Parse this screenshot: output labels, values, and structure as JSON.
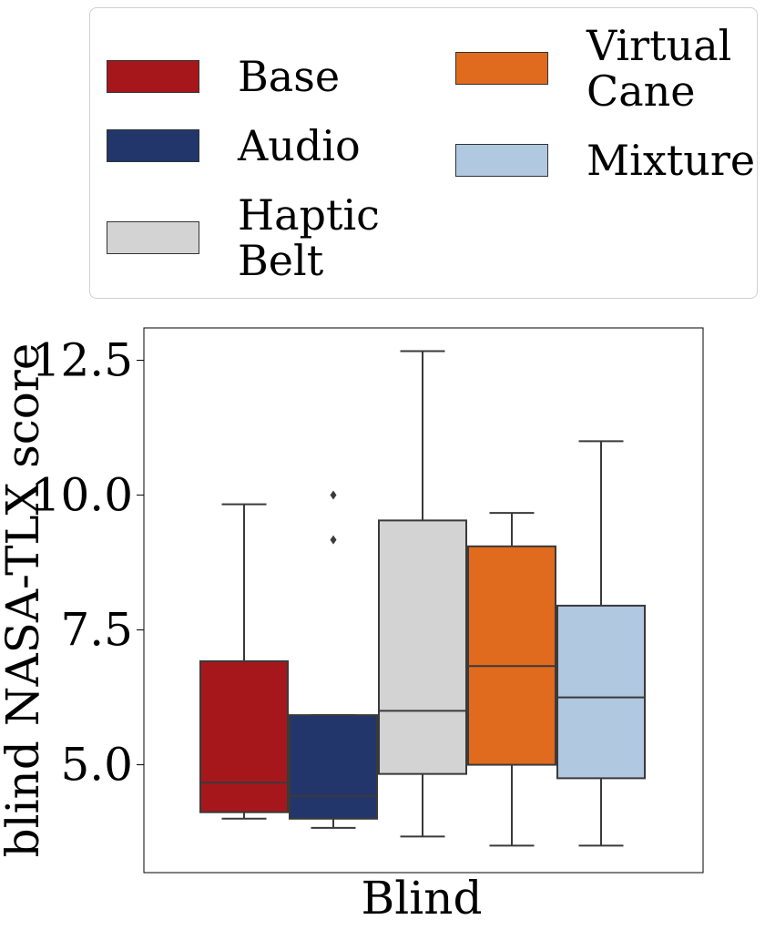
{
  "chart_data": {
    "type": "boxplot",
    "xlabel": "Blind",
    "ylabel": "blind NASA-TLX score",
    "categories": [
      "Blind"
    ],
    "ylim": [
      3.0,
      13.1
    ],
    "yticks": [
      5.0,
      7.5,
      10.0,
      12.5
    ],
    "ytick_labels": [
      "5.0",
      "7.5",
      "10.0",
      "12.5"
    ],
    "legend_placement": "above",
    "grid": false,
    "series": [
      {
        "name": "Base",
        "color": "#a6171c",
        "whisker_low": 4.0,
        "q1": 4.12,
        "median": 4.67,
        "q3": 6.92,
        "whisker_high": 9.83,
        "outliers": []
      },
      {
        "name": "Audio",
        "color": "#22366b",
        "whisker_low": 3.83,
        "q1": 4.0,
        "median": 4.42,
        "q3": 5.92,
        "whisker_high": 5.92,
        "outliers": [
          9.17,
          10.0
        ]
      },
      {
        "name": "Haptic\nBelt",
        "color": "#d3d3d3",
        "whisker_low": 3.67,
        "q1": 4.83,
        "median": 6.0,
        "q3": 9.53,
        "whisker_high": 12.67,
        "outliers": []
      },
      {
        "name": "Virtual\nCane",
        "color": "#e06a1e",
        "whisker_low": 3.5,
        "q1": 5.0,
        "median": 6.83,
        "q3": 9.05,
        "whisker_high": 9.67,
        "outliers": []
      },
      {
        "name": "Mixture",
        "color": "#b0c8e0",
        "whisker_low": 3.5,
        "q1": 4.75,
        "median": 6.25,
        "q3": 7.95,
        "whisker_high": 11.0,
        "outliers": []
      }
    ]
  }
}
